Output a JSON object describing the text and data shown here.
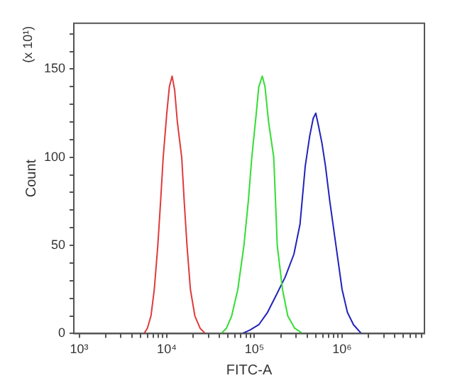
{
  "chart_data": {
    "type": "line",
    "xlabel": "FITC-A",
    "ylabel": "Count",
    "annotations": [
      "(x 10¹)"
    ],
    "log": "x",
    "grid": false,
    "legend": false,
    "marker": "none",
    "line_style": "solid",
    "xlim": [
      870,
      8700000
    ],
    "xticks": [
      {
        "value": 1000,
        "label": "10³"
      },
      {
        "value": 2000,
        "label": null
      },
      {
        "value": 3000,
        "label": null
      },
      {
        "value": 4000,
        "label": null
      },
      {
        "value": 5000,
        "label": null
      },
      {
        "value": 6000,
        "label": null
      },
      {
        "value": 7000,
        "label": null
      },
      {
        "value": 8000,
        "label": null
      },
      {
        "value": 9000,
        "label": null
      },
      {
        "value": 10000,
        "label": "10⁴"
      },
      {
        "value": 20000,
        "label": null
      },
      {
        "value": 30000,
        "label": null
      },
      {
        "value": 40000,
        "label": null
      },
      {
        "value": 50000,
        "label": null
      },
      {
        "value": 60000,
        "label": null
      },
      {
        "value": 70000,
        "label": null
      },
      {
        "value": 80000,
        "label": null
      },
      {
        "value": 90000,
        "label": null
      },
      {
        "value": 100000,
        "label": "10⁵"
      },
      {
        "value": 200000,
        "label": null
      },
      {
        "value": 300000,
        "label": null
      },
      {
        "value": 400000,
        "label": null
      },
      {
        "value": 500000,
        "label": null
      },
      {
        "value": 600000,
        "label": null
      },
      {
        "value": 700000,
        "label": null
      },
      {
        "value": 800000,
        "label": null
      },
      {
        "value": 900000,
        "label": null
      },
      {
        "value": 1000000,
        "label": "10⁶"
      },
      {
        "value": 2000000,
        "label": null
      },
      {
        "value": 3000000,
        "label": null
      },
      {
        "value": 4000000,
        "label": null
      },
      {
        "value": 5000000,
        "label": null
      },
      {
        "value": 6000000,
        "label": null
      },
      {
        "value": 7000000,
        "label": null
      },
      {
        "value": 8000000,
        "label": null
      }
    ],
    "ylim": [
      0,
      176
    ],
    "yticks": [
      0,
      {
        "value": 10,
        "label": null
      },
      {
        "value": 20,
        "label": null
      },
      {
        "value": 30,
        "label": null
      },
      {
        "value": 40,
        "label": null
      },
      50,
      {
        "value": 60,
        "label": null
      },
      {
        "value": 70,
        "label": null
      },
      {
        "value": 80,
        "label": null
      },
      {
        "value": 90,
        "label": null
      },
      100,
      {
        "value": 110,
        "label": null
      },
      {
        "value": 120,
        "label": null
      },
      {
        "value": 130,
        "label": null
      },
      {
        "value": 140,
        "label": null
      },
      150,
      {
        "value": 160,
        "label": null
      },
      {
        "value": 170,
        "label": null
      }
    ],
    "series": [
      {
        "color": "#e03a3a",
        "x": [
          5500,
          6000,
          6600,
          7200,
          7900,
          8500,
          9100,
          10000,
          10700,
          11500,
          12300,
          13200,
          14800,
          15800,
          17000,
          18600,
          20900,
          24000,
          27500
        ],
        "values": [
          0,
          3,
          10,
          25,
          50,
          75,
          100,
          125,
          140,
          146,
          138,
          120,
          100,
          75,
          50,
          25,
          10,
          3,
          0
        ]
      },
      {
        "color": "#33dd33",
        "x": [
          41700,
          47900,
          55000,
          64600,
          75900,
          85100,
          93300,
          105000,
          112000,
          123000,
          132000,
          145000,
          166000,
          174000,
          182000,
          209000,
          240000,
          288000,
          355000
        ],
        "values": [
          0,
          3,
          10,
          25,
          50,
          75,
          100,
          125,
          140,
          146,
          140,
          120,
          100,
          75,
          50,
          25,
          10,
          3,
          0
        ]
      },
      {
        "color": "#2222bb",
        "x": [
          72400,
          89100,
          112000,
          141000,
          178000,
          224000,
          282000,
          331000,
          380000,
          427000,
          468000,
          501000,
          537000,
          589000,
          646000,
          724000,
          851000,
          1000000,
          1150000,
          1350000,
          1660000
        ],
        "values": [
          0,
          2,
          5,
          12,
          22,
          32,
          45,
          62,
          95,
          112,
          122,
          125,
          118,
          108,
          95,
          75,
          50,
          25,
          12,
          5,
          0
        ]
      }
    ]
  }
}
